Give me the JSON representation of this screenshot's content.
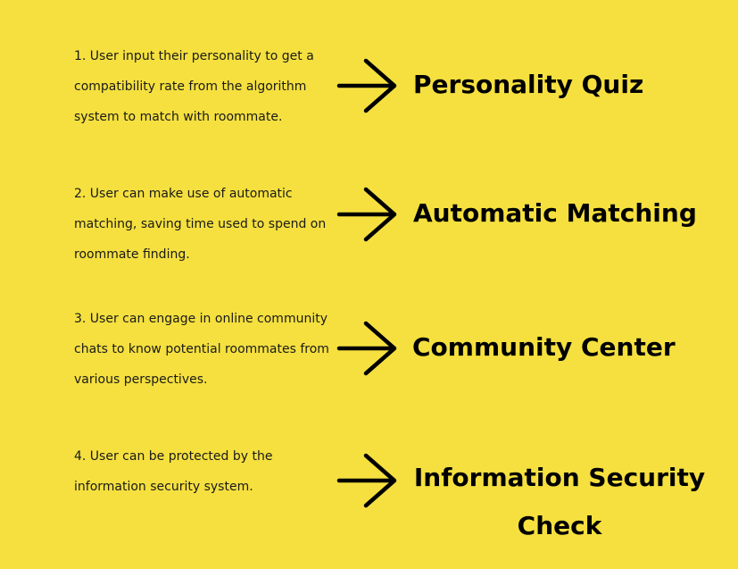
{
  "rows": [
    {
      "description": "1. User input their personality to get a compatibility rate from the algorithm system to match with roommate.",
      "feature": "Personality Quiz"
    },
    {
      "description": "2. User can make use of automatic matching, saving time used to spend on roommate finding.",
      "feature": "Automatic Matching"
    },
    {
      "description": "3. User can engage in online community chats to know potential roommates from various perspectives.",
      "feature": "Community Center"
    },
    {
      "description": "4. User can be protected by the information security system.",
      "feature": "Information Security Check"
    }
  ],
  "colors": {
    "background": "#f5e03f",
    "text": "#000000"
  },
  "icons": {
    "arrow": "arrow-right-icon"
  }
}
